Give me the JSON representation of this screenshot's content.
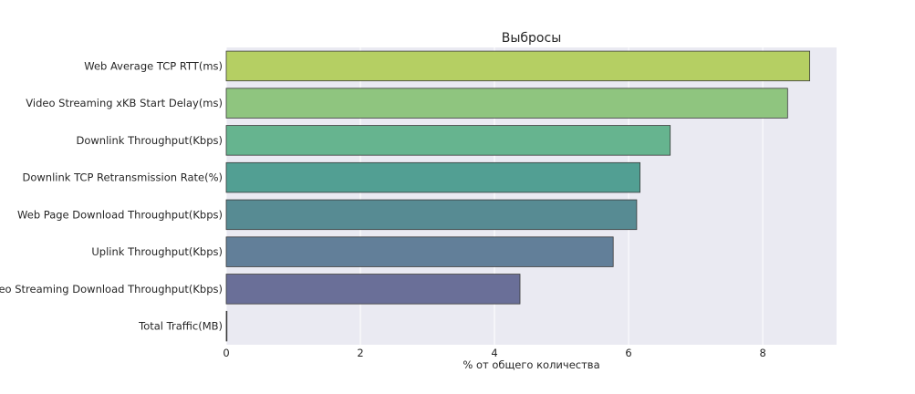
{
  "chart_data": {
    "type": "bar",
    "orientation": "horizontal",
    "title": "Выбросы",
    "xlabel": "% от общего количества",
    "ylabel": "",
    "categories": [
      "Web Average TCP RTT(ms)",
      "Video Streaming xKB Start Delay(ms)",
      "Downlink Throughput(Kbps)",
      "Downlink TCP Retransmission Rate(%)",
      "Web Page Download Throughput(Kbps)",
      "Uplink Throughput(Kbps)",
      "Video Streaming Download Throughput(Kbps)",
      "Total Traffic(MB)"
    ],
    "values": [
      8.7,
      8.37,
      6.62,
      6.17,
      6.12,
      5.77,
      4.38,
      0.0
    ],
    "colors": [
      "#b5cf63",
      "#8fc57f",
      "#66b48f",
      "#529f93",
      "#578b93",
      "#627f99",
      "#6a6f98",
      "#6a5e94"
    ],
    "xlim": [
      0,
      9.1
    ],
    "xticks": [
      "0",
      "2",
      "4",
      "6",
      "8"
    ],
    "xtick_values": [
      0,
      2,
      4,
      6,
      8
    ],
    "grid": true,
    "background": "#eaeaf2"
  }
}
